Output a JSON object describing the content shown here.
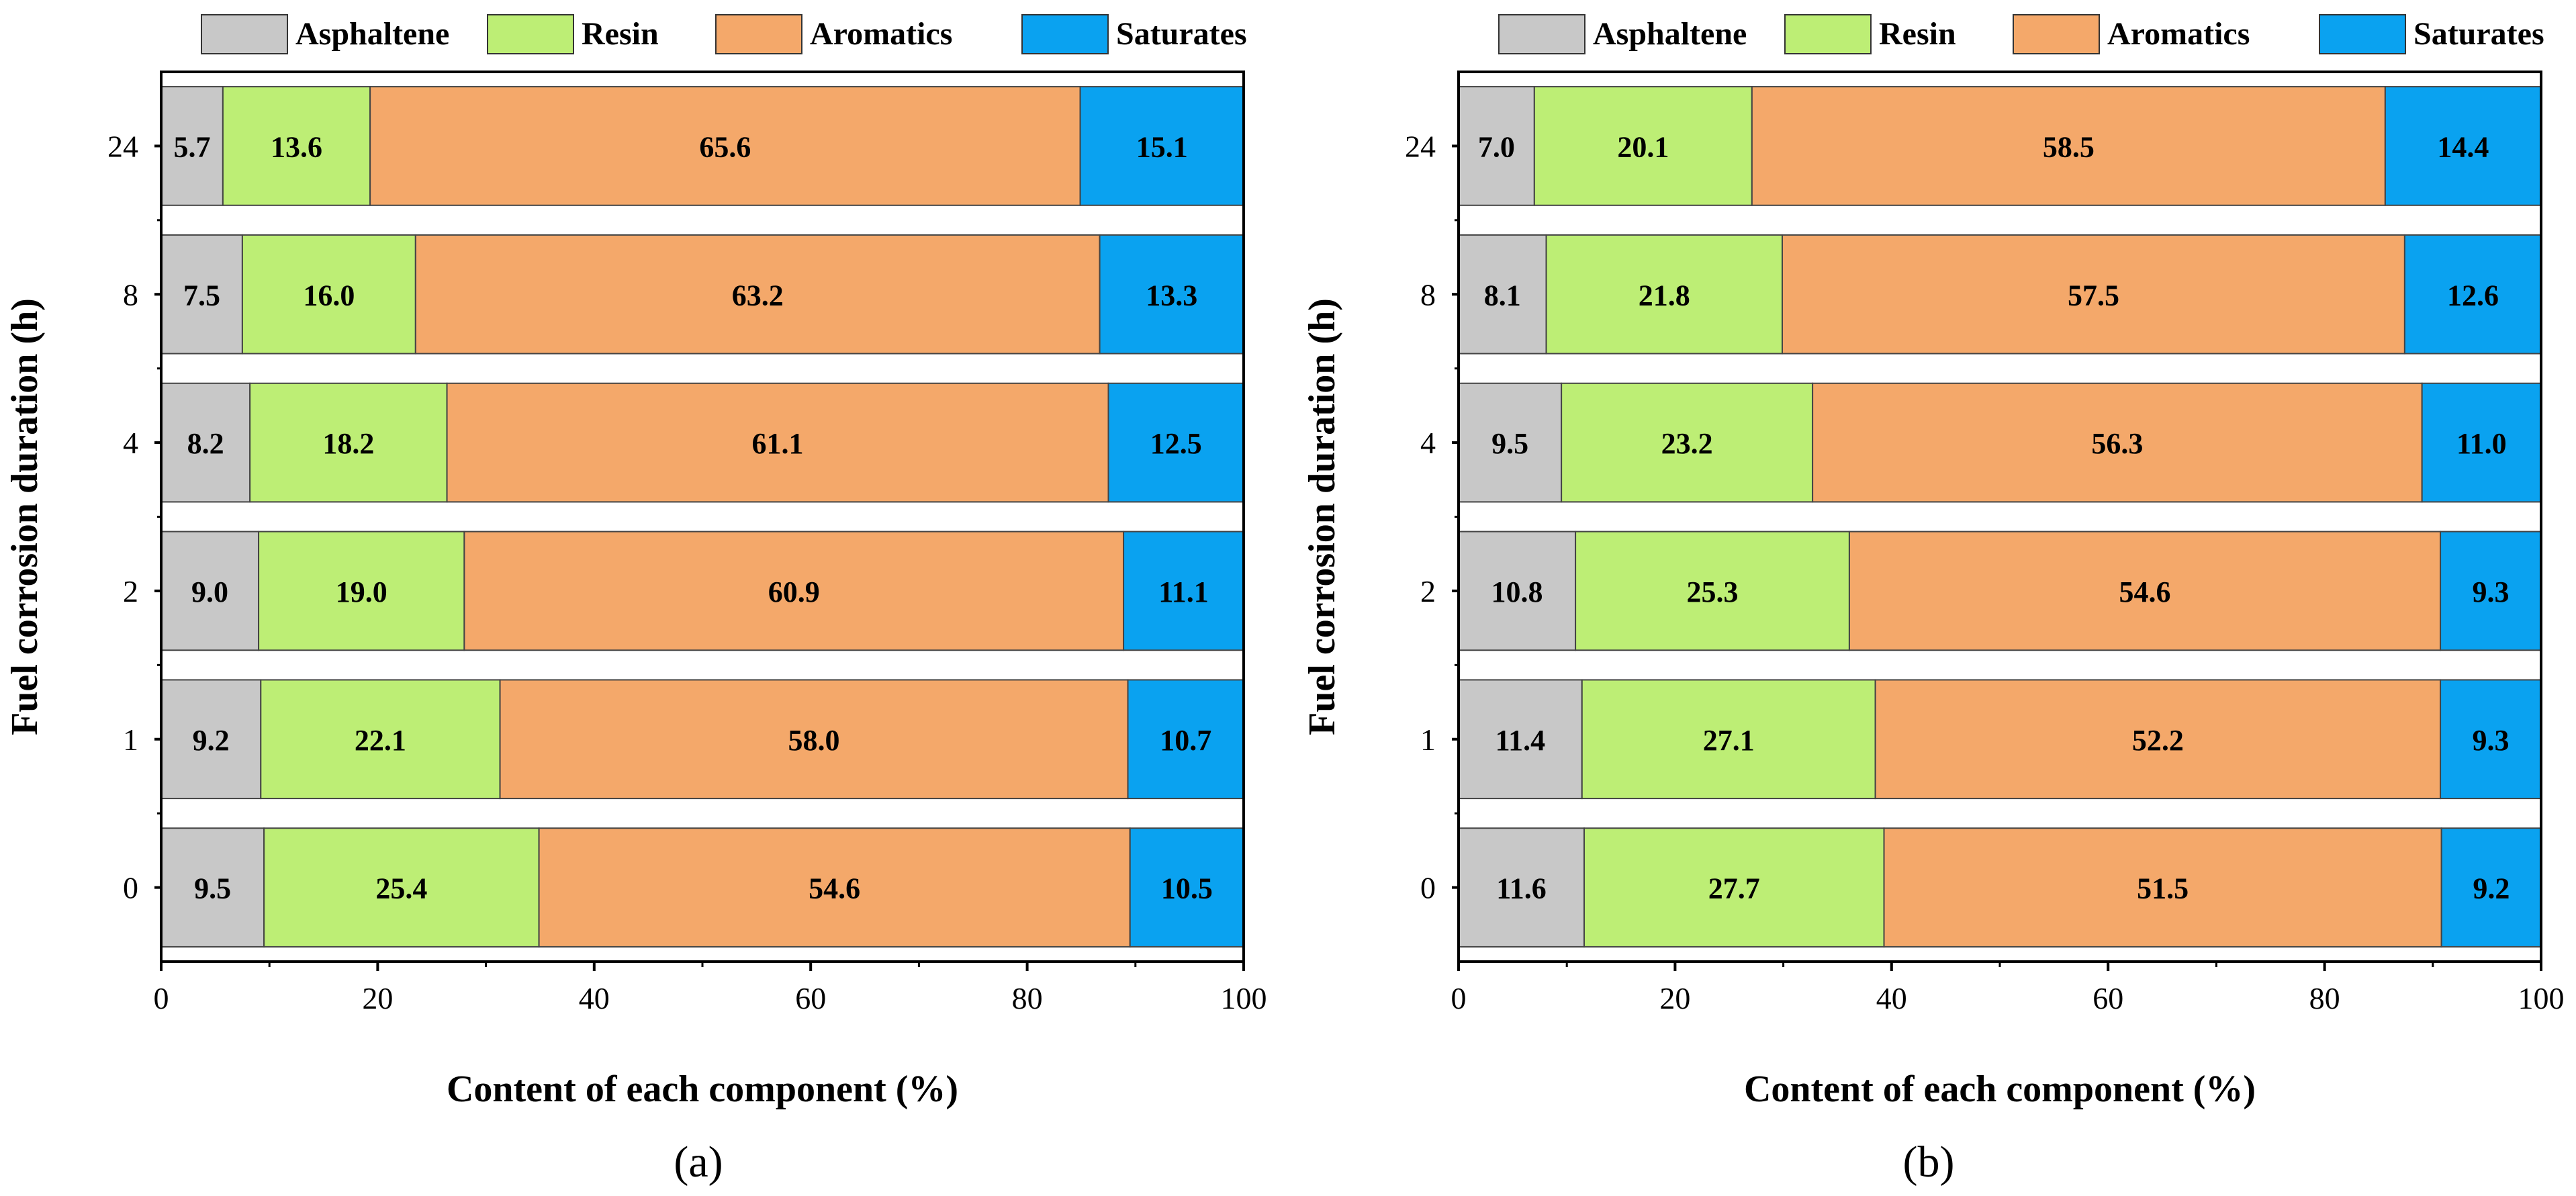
{
  "chart_data": [
    {
      "type": "bar",
      "orientation": "horizontal-stacked",
      "panel_label": "(a)",
      "xlabel": "Content of each component (%)",
      "ylabel": "Fuel corrosion duration (h)",
      "xlim": [
        0,
        100
      ],
      "x_ticks": [
        "0",
        "20",
        "40",
        "60",
        "80",
        "100"
      ],
      "categories": [
        "24",
        "8",
        "4",
        "2",
        "1",
        "0"
      ],
      "series": [
        {
          "name": "Asphaltene",
          "color": "#c8c8c8",
          "values": [
            5.7,
            7.5,
            8.2,
            9.0,
            9.2,
            9.5
          ],
          "labels": [
            "5.7",
            "7.5",
            "8.2",
            "9.0",
            "9.2",
            "9.5"
          ]
        },
        {
          "name": "Resin",
          "color": "#bdee75",
          "values": [
            13.6,
            16.0,
            18.2,
            19.0,
            22.1,
            25.4
          ],
          "labels": [
            "13.6",
            "16.0",
            "18.2",
            "19.0",
            "22.1",
            "25.4"
          ]
        },
        {
          "name": "Aromatics",
          "color": "#f4a86a",
          "values": [
            65.6,
            63.2,
            61.1,
            60.9,
            58.0,
            54.6
          ],
          "labels": [
            "65.6",
            "63.2",
            "61.1",
            "60.9",
            "58.0",
            "54.6"
          ]
        },
        {
          "name": "Saturates",
          "color": "#0aa2f0",
          "values": [
            15.1,
            13.3,
            12.5,
            11.1,
            10.7,
            10.5
          ],
          "labels": [
            "15.1",
            "13.3",
            "12.5",
            "11.1",
            "10.7",
            "10.5"
          ]
        }
      ],
      "legend": "top",
      "grid": false
    },
    {
      "type": "bar",
      "orientation": "horizontal-stacked",
      "panel_label": "(b)",
      "xlabel": "Content of each component (%)",
      "ylabel": "Fuel corrosion duration (h)",
      "xlim": [
        0,
        100
      ],
      "x_ticks": [
        "0",
        "20",
        "40",
        "60",
        "80",
        "100"
      ],
      "categories": [
        "24",
        "8",
        "4",
        "2",
        "1",
        "0"
      ],
      "series": [
        {
          "name": "Asphaltene",
          "color": "#c8c8c8",
          "values": [
            7.0,
            8.1,
            9.5,
            10.8,
            11.4,
            11.6
          ],
          "labels": [
            "7.0",
            "8.1",
            "9.5",
            "10.8",
            "11.4",
            "11.6"
          ]
        },
        {
          "name": "Resin",
          "color": "#bdee75",
          "values": [
            20.1,
            21.8,
            23.2,
            25.3,
            27.1,
            27.7
          ],
          "labels": [
            "20.1",
            "21.8",
            "23.2",
            "25.3",
            "27.1",
            "27.7"
          ]
        },
        {
          "name": "Aromatics",
          "color": "#f4a86a",
          "values": [
            58.5,
            57.5,
            56.3,
            54.6,
            52.2,
            51.5
          ],
          "labels": [
            "58.5",
            "57.5",
            "56.3",
            "54.6",
            "52.2",
            "51.5"
          ]
        },
        {
          "name": "Saturates",
          "color": "#0aa2f0",
          "values": [
            14.4,
            12.6,
            11.0,
            9.3,
            9.3,
            9.2
          ],
          "labels": [
            "14.4",
            "12.6",
            "11.0",
            "9.3",
            "9.3",
            "9.2"
          ]
        }
      ],
      "legend": "top",
      "grid": false
    }
  ]
}
